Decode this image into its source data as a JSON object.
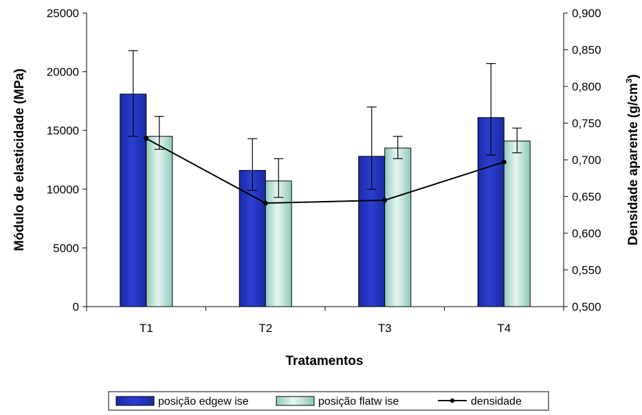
{
  "chart_data": {
    "type": "bar",
    "categories": [
      "T1",
      "T2",
      "T3",
      "T4"
    ],
    "xlabel": "Tratamentos",
    "ylabel": "Módulo de elasticidade (MPa)",
    "y2label_main": "Densidade aparente (g/cm",
    "y2label_sup": "3",
    "y2label_close": ")",
    "ylim": [
      0,
      25000
    ],
    "yticks": [
      "0",
      "5000",
      "10000",
      "15000",
      "20000",
      "25000"
    ],
    "y2lim": [
      0.5,
      0.9
    ],
    "y2ticks": [
      "0,500",
      "0,550",
      "0,600",
      "0,650",
      "0,700",
      "0,750",
      "0,800",
      "0,850",
      "0,900"
    ],
    "series": [
      {
        "name": "posição edgew ise",
        "kind": "bar",
        "color": "#2b3fcf",
        "values": [
          18100,
          11600,
          12800,
          16100
        ],
        "err_low": [
          14500,
          9900,
          10000,
          12900
        ],
        "err_high": [
          21800,
          14300,
          17000,
          20700
        ]
      },
      {
        "name": "posição flatw ise",
        "kind": "bar",
        "color": "#b9e3d8",
        "values": [
          14500,
          10700,
          13500,
          14100
        ],
        "err_low": [
          13400,
          9300,
          12600,
          13100
        ],
        "err_high": [
          16200,
          12600,
          14500,
          15200
        ]
      },
      {
        "name": "densidade",
        "kind": "line",
        "axis": "right",
        "color": "#000000",
        "values": [
          0.729,
          0.641,
          0.645,
          0.697
        ]
      }
    ],
    "legend_position": "bottom",
    "grid": false
  }
}
